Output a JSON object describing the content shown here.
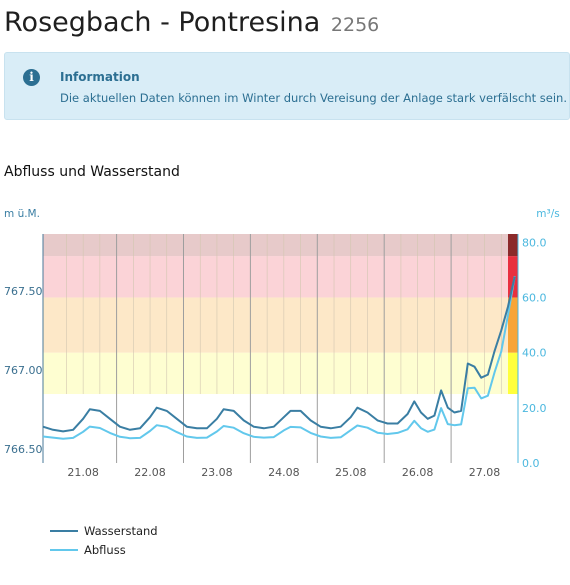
{
  "page": {
    "station_name": "Rosegbach - Pontresina",
    "station_number": "2256"
  },
  "info_box": {
    "icon": "info-circle-icon",
    "title": "Information",
    "text": "Die aktuellen Daten können im Winter durch Vereisung der Anlage stark verfälscht sein."
  },
  "section": {
    "title": "Abfluss und Wasserstand"
  },
  "colors": {
    "band_1": "#fefed1",
    "band_2": "#fde8c8",
    "band_3": "#fbd3d7",
    "band_4": "#e7caca",
    "marker_1": "#ffff3c",
    "marker_2": "#f8a536",
    "marker_3": "#e8303f",
    "marker_4": "#8b2a2a",
    "wasserstand": "#3a7ea3",
    "abfluss": "#62c8ec",
    "right_axis": "#4cb8df"
  },
  "chart_data": {
    "type": "line",
    "left_axis": {
      "label": "m ü.M.",
      "ticks": [
        "767.50",
        "767.00",
        "766.50"
      ],
      "range": [
        766.41,
        767.86
      ]
    },
    "right_axis": {
      "label": "m³/s",
      "ticks": [
        "80.0",
        "60.0",
        "40.0",
        "20.0",
        "0.0"
      ],
      "range": [
        0,
        83
      ]
    },
    "x_ticks": [
      "21.08",
      "22.08",
      "23.08",
      "24.08",
      "25.08",
      "26.08",
      "27.08"
    ],
    "x_range": [
      20.4,
      27.5
    ],
    "danger_levels": [
      25,
      40,
      60,
      75
    ],
    "series": [
      {
        "name": "Wasserstand",
        "axis": "left",
        "x": [
          20.4,
          20.55,
          20.7,
          20.85,
          21.0,
          21.1,
          21.25,
          21.4,
          21.55,
          21.7,
          21.85,
          22.0,
          22.1,
          22.25,
          22.4,
          22.55,
          22.7,
          22.85,
          23.0,
          23.1,
          23.25,
          23.4,
          23.55,
          23.7,
          23.85,
          24.0,
          24.1,
          24.25,
          24.4,
          24.55,
          24.7,
          24.85,
          25.0,
          25.1,
          25.25,
          25.4,
          25.55,
          25.7,
          25.85,
          25.95,
          26.05,
          26.15,
          26.25,
          26.35,
          26.45,
          26.55,
          26.65,
          26.75,
          26.85,
          26.95,
          27.05,
          27.15,
          27.25,
          27.35,
          27.45
        ],
        "y": [
          766.64,
          766.62,
          766.61,
          766.62,
          766.69,
          766.75,
          766.74,
          766.69,
          766.64,
          766.62,
          766.63,
          766.7,
          766.76,
          766.74,
          766.69,
          766.64,
          766.63,
          766.63,
          766.69,
          766.75,
          766.74,
          766.68,
          766.64,
          766.63,
          766.64,
          766.7,
          766.74,
          766.74,
          766.68,
          766.64,
          766.63,
          766.64,
          766.7,
          766.76,
          766.73,
          766.68,
          766.66,
          766.66,
          766.72,
          766.8,
          766.73,
          766.69,
          766.71,
          766.87,
          766.76,
          766.73,
          766.74,
          767.04,
          767.02,
          766.95,
          766.97,
          767.12,
          767.25,
          767.4,
          767.59
        ]
      },
      {
        "name": "Abfluss",
        "axis": "right",
        "x": [
          20.4,
          20.55,
          20.7,
          20.85,
          21.0,
          21.1,
          21.25,
          21.4,
          21.55,
          21.7,
          21.85,
          22.0,
          22.1,
          22.25,
          22.4,
          22.55,
          22.7,
          22.85,
          23.0,
          23.1,
          23.25,
          23.4,
          23.55,
          23.7,
          23.85,
          24.0,
          24.1,
          24.25,
          24.4,
          24.55,
          24.7,
          24.85,
          25.0,
          25.1,
          25.25,
          25.4,
          25.55,
          25.7,
          25.85,
          25.95,
          26.05,
          26.15,
          26.25,
          26.35,
          26.45,
          26.55,
          26.65,
          26.75,
          26.85,
          26.95,
          27.05,
          27.15,
          27.25,
          27.35,
          27.45
        ],
        "y": [
          9.6,
          9.2,
          8.8,
          9.1,
          11.3,
          13.2,
          12.7,
          10.9,
          9.5,
          9.0,
          9.1,
          11.6,
          13.7,
          13.1,
          11.2,
          9.6,
          9.1,
          9.2,
          11.4,
          13.4,
          12.8,
          10.8,
          9.5,
          9.2,
          9.4,
          11.8,
          13.1,
          12.9,
          10.9,
          9.6,
          9.1,
          9.3,
          11.9,
          13.6,
          12.8,
          11.0,
          10.5,
          10.9,
          12.2,
          15.3,
          12.6,
          11.3,
          12.1,
          19.9,
          14.1,
          13.7,
          14.0,
          27.1,
          27.3,
          23.4,
          24.4,
          32.9,
          40.5,
          53.6,
          67.7
        ]
      }
    ]
  }
}
